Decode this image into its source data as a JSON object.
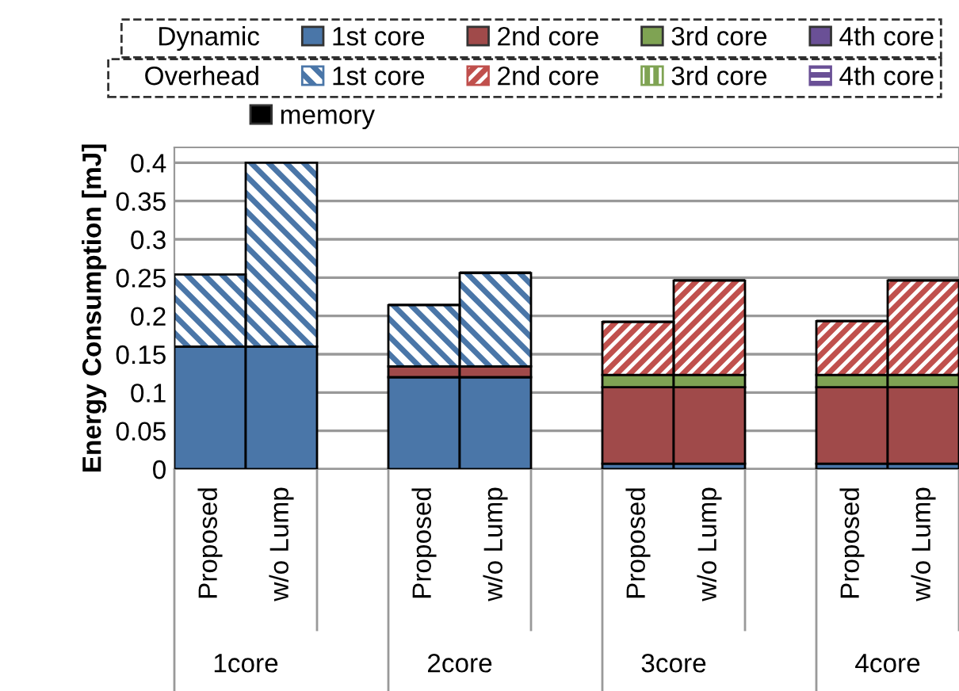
{
  "chart_data": {
    "type": "bar",
    "stacked": true,
    "ylabel": "Energy Consumption [mJ]",
    "categories": [
      "Proposed",
      "w/o Lump",
      null,
      "Proposed",
      "w/o Lump",
      null,
      "Proposed",
      "w/o Lump",
      null,
      "Proposed",
      "w/o Lump"
    ],
    "annotations": [
      "1core",
      "2core",
      "3core",
      "4core",
      "Dynamic",
      "Overhead"
    ],
    "series": [
      {
        "name": "1st core",
        "color": "#4a76a8",
        "values": [
          0.16,
          0.16,
          null,
          0.12,
          0.12,
          null,
          0.007,
          0.007,
          null,
          0.007,
          0.007
        ]
      },
      {
        "name": "2nd core",
        "color": "#a04a4a",
        "values": [
          0,
          0,
          null,
          0.014,
          0.014,
          null,
          0.1,
          0.1,
          null,
          0.1,
          0.1
        ]
      },
      {
        "name": "3rd core",
        "color": "#7fa353",
        "values": [
          0,
          0,
          null,
          0,
          0,
          null,
          0.016,
          0.016,
          null,
          0.016,
          0.016
        ]
      },
      {
        "name": "4th core",
        "color": "#6a5096",
        "values": [
          0,
          0,
          null,
          0,
          0,
          null,
          0,
          0,
          null,
          0,
          0
        ]
      },
      {
        "name": "1st core",
        "color": "#4a76a8",
        "values": [
          0.094,
          0.24,
          null,
          0.08,
          0.122,
          null,
          0,
          0,
          null,
          0,
          0
        ]
      },
      {
        "name": "2nd core",
        "color": "#c0504d",
        "values": [
          0,
          0,
          null,
          0,
          0,
          null,
          0.069,
          0.123,
          null,
          0.07,
          0.123
        ]
      },
      {
        "name": "3rd core",
        "color": "#7fa353",
        "values": [
          0,
          0,
          null,
          0,
          0,
          null,
          0,
          0,
          null,
          0,
          0
        ]
      },
      {
        "name": "4th core",
        "color": "#6a5096",
        "values": [
          0,
          0,
          null,
          0,
          0,
          null,
          0,
          0,
          null,
          0,
          0
        ]
      },
      {
        "name": "memory",
        "color": "#000000",
        "values": [
          0.001,
          0.001,
          null,
          0.002,
          0.002,
          null,
          0.002,
          0.002,
          null,
          0.002,
          0.002
        ]
      }
    ],
    "ylim": [
      0,
      0.42
    ],
    "yticks": [
      0,
      {
        "value": 0.05,
        "label": "0.05"
      },
      {
        "value": 0.1,
        "label": "0.1"
      },
      {
        "value": 0.15,
        "label": "0.15"
      },
      {
        "value": 0.2,
        "label": "0.2"
      },
      {
        "value": 0.25,
        "label": "0.25"
      },
      {
        "value": 0.3,
        "label": "0.3"
      },
      {
        "value": 0.35,
        "label": "0.35"
      },
      {
        "value": 0.4,
        "label": "0.4"
      }
    ],
    "grid": "y",
    "legend": "top"
  }
}
